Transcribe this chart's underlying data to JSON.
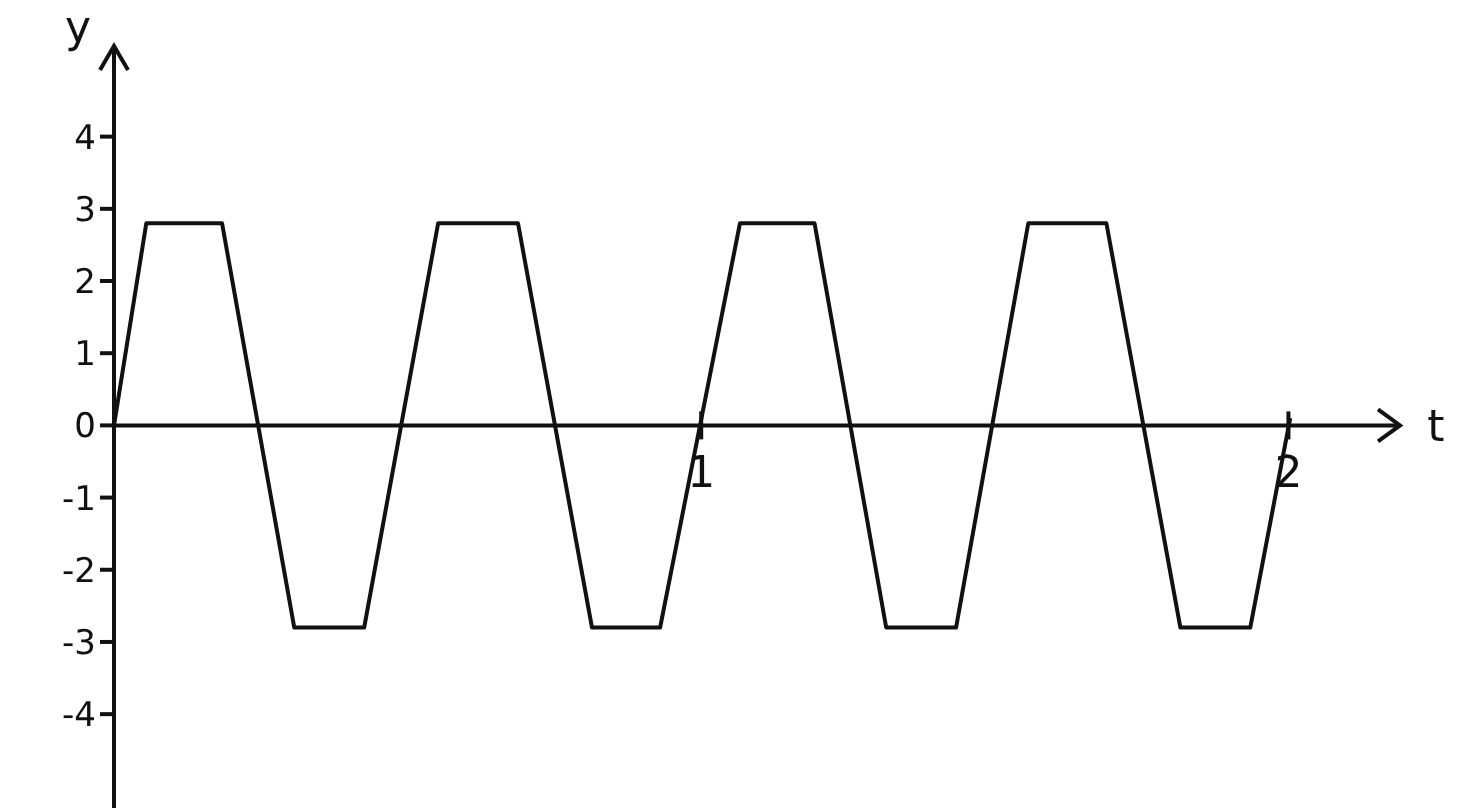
{
  "chart_data": {
    "type": "line",
    "xlabel": "t",
    "ylabel": "y",
    "x": [
      0,
      0.055,
      0.184,
      0.307,
      0.426,
      0.552,
      0.688,
      0.814,
      0.93,
      1.066,
      1.193,
      1.315,
      1.434,
      1.557,
      1.69,
      1.816,
      1.935,
      2.003
    ],
    "series": [
      {
        "color": "#111111",
        "values": [
          0,
          2.8,
          2.8,
          -2.8,
          -2.8,
          2.8,
          2.8,
          -2.8,
          -2.8,
          2.8,
          2.8,
          -2.8,
          -2.8,
          2.8,
          2.8,
          -2.8,
          -2.8,
          0.1
        ]
      }
    ],
    "xlim": [
      0,
      2.19
    ],
    "xticks": [
      1,
      2
    ],
    "ylim": [
      -5.3,
      5.2
    ],
    "yticks": [
      -4,
      -3,
      -2,
      -1,
      0,
      1,
      2,
      3,
      4
    ],
    "marker": "none",
    "line_style": "solid"
  }
}
